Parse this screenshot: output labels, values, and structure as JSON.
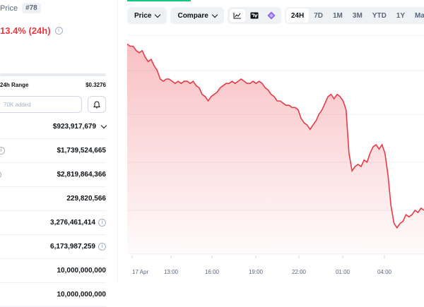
{
  "header": {
    "price_label": "Price",
    "rank": "#78",
    "change": "13.4% (24h)"
  },
  "range": {
    "label": "24h Range",
    "high": "$0.3276"
  },
  "watchlist": {
    "added_text": "​70K added"
  },
  "stats": [
    {
      "value": "$923,917,679",
      "lead": "",
      "suffix": "chevron"
    },
    {
      "value": "$1,739,524,665",
      "lead": "info",
      "suffix": ""
    },
    {
      "value": "$2,819,864,366",
      "lead": "info-partial",
      "suffix": ""
    },
    {
      "value": "229,820,566",
      "lead": "",
      "suffix": ""
    },
    {
      "value": "3,276,461,414",
      "lead": "",
      "suffix": "info"
    },
    {
      "value": "6,173,987,259",
      "lead": "",
      "suffix": "info"
    },
    {
      "value": "10,000,000,000",
      "lead": "",
      "suffix": ""
    },
    {
      "value": "10,000,000,000",
      "lead": "",
      "suffix": ""
    }
  ],
  "toolbar": {
    "price_button": "Price",
    "compare_button": "Compare",
    "tools": [
      "line-chart-icon",
      "tradingview-icon",
      "ai-sparkle-icon"
    ],
    "ranges": [
      "24H",
      "7D",
      "1M",
      "3M",
      "YTD",
      "1Y",
      "Max"
    ],
    "active_range": "24H"
  },
  "chart_data": {
    "type": "area",
    "series_color": "#ea3943",
    "x_labels": [
      "17 Apr",
      "13:00",
      "16:00",
      "19:00",
      "22:00",
      "01:00",
      "04:00"
    ],
    "y": [
      0.96,
      0.95,
      0.95,
      0.93,
      0.92,
      0.93,
      0.9,
      0.88,
      0.89,
      0.86,
      0.84,
      0.8,
      0.79,
      0.8,
      0.8,
      0.79,
      0.78,
      0.79,
      0.78,
      0.79,
      0.79,
      0.78,
      0.79,
      0.77,
      0.76,
      0.73,
      0.72,
      0.7,
      0.72,
      0.73,
      0.74,
      0.76,
      0.77,
      0.78,
      0.78,
      0.79,
      0.78,
      0.79,
      0.8,
      0.79,
      0.78,
      0.78,
      0.79,
      0.78,
      0.79,
      0.78,
      0.76,
      0.75,
      0.73,
      0.72,
      0.7,
      0.7,
      0.69,
      0.68,
      0.68,
      0.67,
      0.67,
      0.66,
      0.62,
      0.6,
      0.59,
      0.57,
      0.59,
      0.61,
      0.64,
      0.66,
      0.69,
      0.72,
      0.73,
      0.71,
      0.73,
      0.72,
      0.7,
      0.66,
      0.46,
      0.38,
      0.4,
      0.41,
      0.4,
      0.43,
      0.42,
      0.46,
      0.49,
      0.5,
      0.48,
      0.5,
      0.46,
      0.36,
      0.22,
      0.14,
      0.12,
      0.14,
      0.15,
      0.18,
      0.17,
      0.18,
      0.2,
      0.19,
      0.21,
      0.2
    ]
  }
}
